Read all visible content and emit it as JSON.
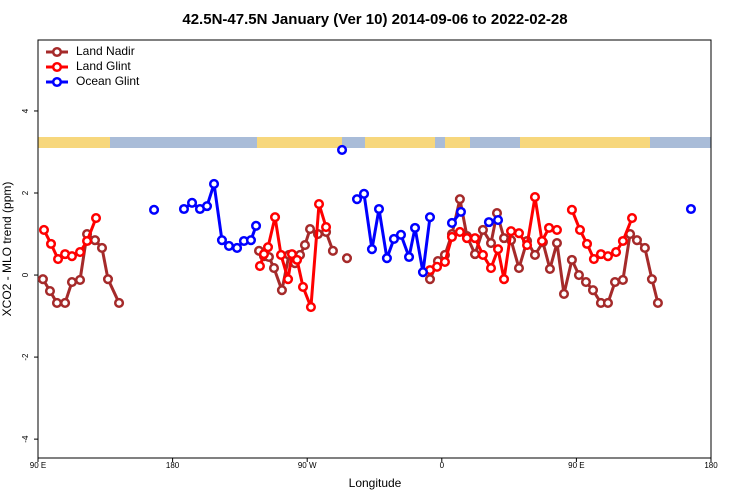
{
  "chart_data": {
    "type": "line",
    "title": "42.5N-47.5N January (Ver 10)   2014-09-06 to 2022-02-28",
    "x_label": "Longitude",
    "y_label": "XCO2 - MLO trend (ppm)",
    "xlim": [
      90,
      540
    ],
    "ylim": [
      -4.46,
      5.73
    ],
    "xticks": [
      {
        "value": 90,
        "label": "90 E"
      },
      180,
      {
        "value": 270,
        "label": "90 W"
      },
      {
        "value": 360,
        "label": "0"
      },
      {
        "value": 450,
        "label": "90 E"
      },
      {
        "value": 540,
        "label": "180"
      }
    ],
    "yticks": [
      -4,
      -2,
      0,
      2,
      4
    ],
    "legend": "top-left",
    "series": [
      {
        "name": "Land Nadir",
        "color": "#a52a2a",
        "x": [
          93.3,
          98.0,
          102.7,
          108.1,
          112.7,
          118.1,
          122.8,
          128.1,
          132.8,
          136.8,
          144.2,
          null,
          237.8,
          241.1,
          244.4,
          247.8,
          253.1,
          257.8,
          261.8,
          265.2,
          268.5,
          271.9,
          277.2,
          282.6,
          287.2,
          null,
          296.6,
          null,
          352.1,
          357.4,
          362.1,
          366.8,
          372.1,
          376.8,
          382.2,
          387.5,
          392.9,
          396.9,
          401.6,
          406.3,
          411.6,
          417.0,
          422.3,
          427.6,
          432.3,
          437.0,
          441.7,
          447.0,
          451.7,
          456.4,
          461.1,
          466.4,
          471.1,
          475.8,
          481.1,
          485.9,
          490.5,
          495.8,
          500.5,
          504.5
        ],
        "values": [
          -0.1,
          -0.39,
          -0.68,
          -0.68,
          -0.17,
          -0.12,
          1.0,
          0.85,
          0.66,
          -0.1,
          -0.68,
          null,
          0.59,
          0.46,
          0.44,
          0.17,
          -0.37,
          0.49,
          0.29,
          0.49,
          0.73,
          1.12,
          1.0,
          1.05,
          0.59,
          null,
          0.41,
          null,
          -0.1,
          0.34,
          0.49,
          1.0,
          1.85,
          0.95,
          0.51,
          1.1,
          0.78,
          1.51,
          0.9,
          0.85,
          0.17,
          0.83,
          0.49,
          0.8,
          0.15,
          0.78,
          -0.46,
          0.37,
          0,
          -0.17,
          -0.37,
          -0.68,
          -0.68,
          -0.17,
          -0.12,
          1.0,
          0.85,
          0.66,
          -0.1,
          -0.68
        ]
      },
      {
        "name": "Land Glint",
        "color": "#ff0000",
        "x": [
          94.0,
          98.7,
          103.4,
          108.1,
          112.7,
          118.1,
          122.8,
          128.8,
          null,
          238.4,
          241.1,
          243.8,
          248.5,
          252.5,
          257.2,
          259.8,
          263.2,
          267.2,
          272.5,
          277.9,
          282.6,
          null,
          352.1,
          356.8,
          362.1,
          366.8,
          372.1,
          376.8,
          382.2,
          387.5,
          392.9,
          397.6,
          401.6,
          406.3,
          411.6,
          417.0,
          422.3,
          427.0,
          431.7,
          437.0,
          null,
          447.0,
          452.4,
          457.1,
          461.7,
          466.4,
          471.1,
          476.5,
          481.1,
          487.2
        ],
        "values": [
          1.1,
          0.76,
          0.39,
          0.51,
          0.46,
          0.56,
          0.83,
          1.39,
          null,
          0.22,
          0.51,
          0.68,
          1.41,
          0.49,
          -0.1,
          0.51,
          0.37,
          -0.29,
          -0.78,
          1.73,
          1.17,
          null,
          0.12,
          0.2,
          0.32,
          0.93,
          1.05,
          0.9,
          0.9,
          0.49,
          0.17,
          0.63,
          -0.1,
          1.07,
          1.02,
          0.73,
          1.9,
          0.83,
          1.15,
          1.1,
          null,
          1.59,
          1.1,
          0.76,
          0.39,
          0.51,
          0.46,
          0.56,
          0.83,
          1.39
        ]
      },
      {
        "name": "Ocean Glint",
        "color": "#0000ff",
        "x": [
          167.6,
          null,
          187.6,
          193.0,
          198.3,
          203.0,
          207.7,
          213.0,
          217.7,
          223.1,
          227.7,
          232.4,
          235.8,
          null,
          293.3,
          null,
          303.3,
          308.0,
          313.3,
          318.0,
          323.3,
          328.0,
          332.7,
          338.1,
          342.1,
          347.4,
          352.1,
          null,
          366.8,
          372.8,
          null,
          391.5,
          397.6,
          null,
          526.6
        ],
        "values": [
          1.59,
          null,
          1.61,
          1.76,
          1.61,
          1.68,
          2.22,
          0.85,
          0.71,
          0.66,
          0.83,
          0.85,
          1.2,
          null,
          3.05,
          null,
          1.85,
          1.98,
          0.63,
          1.61,
          0.41,
          0.88,
          0.98,
          0.44,
          1.15,
          0.07,
          1.41,
          null,
          1.27,
          1.54,
          null,
          1.29,
          1.34,
          null,
          1.61
        ]
      }
    ]
  }
}
